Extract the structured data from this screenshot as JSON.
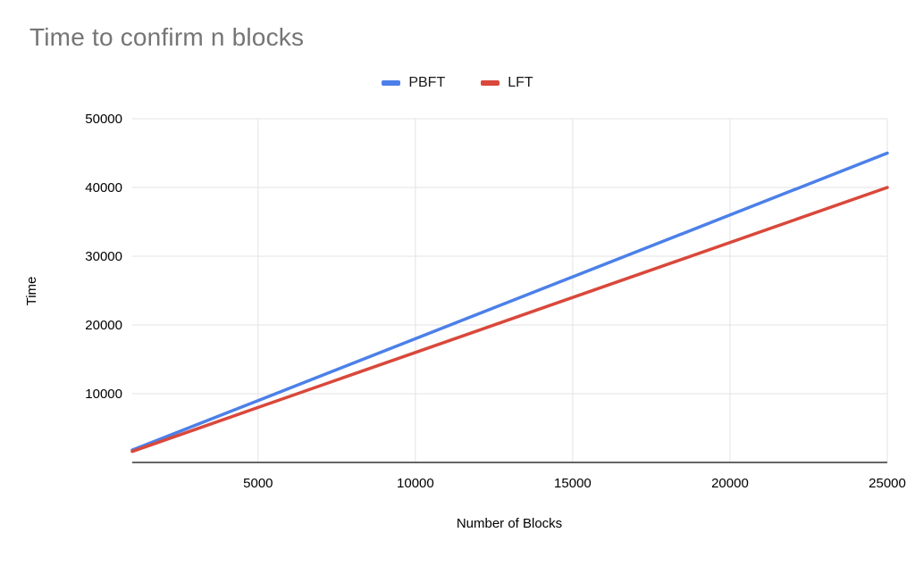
{
  "chart_data": {
    "type": "line",
    "title": "Time to confirm n blocks",
    "xlabel": "Number of Blocks",
    "ylabel": "Time",
    "x": [
      1000,
      5000,
      10000,
      15000,
      20000,
      25000
    ],
    "series": [
      {
        "name": "PBFT",
        "color": "#4c80e8",
        "values": [
          1800,
          9000,
          18000,
          27000,
          36000,
          45000
        ]
      },
      {
        "name": "LFT",
        "color": "#d9483b",
        "values": [
          1600,
          8000,
          16000,
          24000,
          32000,
          40000
        ]
      }
    ],
    "xlim": [
      1000,
      25000
    ],
    "ylim": [
      0,
      50000
    ],
    "x_ticks": [
      5000,
      10000,
      15000,
      20000,
      25000
    ],
    "y_ticks": [
      10000,
      20000,
      30000,
      40000,
      50000
    ],
    "grid": true,
    "legend_position": "top",
    "colors": {
      "title_text": "#757575",
      "gridline": "#e3e3e3",
      "axis_line": "#333333",
      "tick_text": "#000000"
    }
  }
}
